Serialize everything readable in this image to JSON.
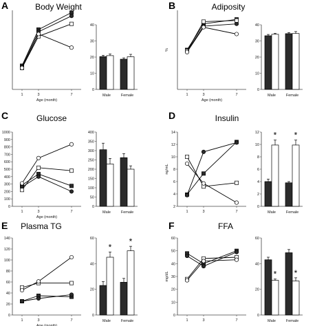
{
  "figure": {
    "colors": {
      "filled": "#2b2b2b",
      "open": "#ffffff",
      "stroke": "#000000",
      "axis": "#444444"
    },
    "legend": "none",
    "grid": false
  },
  "chart_data": [
    {
      "id": "A-line",
      "type": "line",
      "panel": "A",
      "title": "Body Weight",
      "xlabel": "Age (month)",
      "ylabel": "",
      "x": [
        "1",
        "3",
        "7"
      ],
      "ylim": [
        0,
        70
      ],
      "yticks": [],
      "series": [
        {
          "values": [
            21,
            53,
            68
          ],
          "marker": "filled-square"
        },
        {
          "values": [
            20,
            51,
            65
          ],
          "marker": "filled-circle"
        },
        {
          "values": [
            19,
            47,
            58
          ],
          "marker": "open-square"
        },
        {
          "values": [
            19,
            49,
            37
          ],
          "marker": "open-circle"
        }
      ]
    },
    {
      "id": "A-bar",
      "type": "bar",
      "panel": "A",
      "title": "",
      "categories": [
        "Male",
        "Female"
      ],
      "ylim": [
        0,
        40
      ],
      "yticks": [
        "0",
        "10",
        "20",
        "30",
        "40"
      ],
      "series": [
        {
          "values": [
            20.3,
            18.7
          ],
          "errors": [
            0.8,
            0.8
          ],
          "fill": "filled"
        },
        {
          "values": [
            20.9,
            20.2
          ],
          "errors": [
            1.0,
            1.5
          ],
          "fill": "open"
        }
      ],
      "significance": []
    },
    {
      "id": "B-line",
      "type": "line",
      "panel": "B",
      "title": "Adiposity",
      "xlabel": "Age (month)",
      "ylabel": "%",
      "x": [
        "1",
        "3",
        "7"
      ],
      "ylim": [
        0,
        70
      ],
      "yticks": [],
      "series": [
        {
          "values": [
            35,
            58,
            62
          ],
          "marker": "filled-square"
        },
        {
          "values": [
            34,
            56,
            58
          ],
          "marker": "filled-circle"
        },
        {
          "values": [
            34,
            60,
            61
          ],
          "marker": "open-square"
        },
        {
          "values": [
            33,
            55,
            49
          ],
          "marker": "open-circle"
        }
      ]
    },
    {
      "id": "B-bar",
      "type": "bar",
      "panel": "B",
      "title": "",
      "categories": [
        "Male",
        "Female"
      ],
      "ylim": [
        0,
        40
      ],
      "yticks": [
        "0",
        "10",
        "20",
        "30",
        "40"
      ],
      "series": [
        {
          "values": [
            33.2,
            34.5
          ],
          "errors": [
            0.8,
            0.7
          ],
          "fill": "filled"
        },
        {
          "values": [
            34.1,
            34.6
          ],
          "errors": [
            0.6,
            1.2
          ],
          "fill": "open"
        }
      ],
      "significance": []
    },
    {
      "id": "C-line",
      "type": "line",
      "panel": "C",
      "title": "Glucose",
      "xlabel": "Age (month)",
      "ylabel": "",
      "x": [
        "1",
        "3",
        "7"
      ],
      "ylim": [
        0,
        1000
      ],
      "yticks": [
        "0",
        "100",
        "200",
        "300",
        "400",
        "500",
        "600",
        "700",
        "800",
        "900",
        "1000"
      ],
      "series": [
        {
          "values": [
            285,
            435,
            275
          ],
          "marker": "filled-square"
        },
        {
          "values": [
            260,
            400,
            200
          ],
          "marker": "filled-circle"
        },
        {
          "values": [
            220,
            520,
            480
          ],
          "marker": "open-square"
        },
        {
          "values": [
            310,
            650,
            835
          ],
          "marker": "open-circle"
        }
      ]
    },
    {
      "id": "C-bar",
      "type": "bar",
      "panel": "C",
      "title": "",
      "categories": [
        "Male",
        "Female"
      ],
      "ylim": [
        0,
        400
      ],
      "yticks": [
        "0",
        "50",
        "100",
        "150",
        "200",
        "250",
        "300",
        "350",
        "400"
      ],
      "series": [
        {
          "values": [
            305,
            262
          ],
          "errors": [
            35,
            22
          ],
          "fill": "filled"
        },
        {
          "values": [
            228,
            200
          ],
          "errors": [
            30,
            18
          ],
          "fill": "open"
        }
      ],
      "significance": []
    },
    {
      "id": "D-line",
      "type": "line",
      "panel": "D",
      "title": "Insulin",
      "xlabel": "",
      "ylabel": "ng/mL",
      "x": [
        "1",
        "3",
        "7"
      ],
      "ylim": [
        2,
        14
      ],
      "yticks": [
        "2",
        "4",
        "6",
        "8",
        "10",
        "12",
        "14"
      ],
      "series": [
        {
          "values": [
            3.9,
            7.3,
            12.4
          ],
          "marker": "filled-square"
        },
        {
          "values": [
            3.8,
            10.8,
            12.3
          ],
          "marker": "filled-circle"
        },
        {
          "values": [
            10.0,
            5.2,
            5.8
          ],
          "marker": "open-square"
        },
        {
          "values": [
            8.9,
            5.7,
            2.6
          ],
          "marker": "open-circle"
        }
      ]
    },
    {
      "id": "D-bar",
      "type": "bar",
      "panel": "D",
      "title": "",
      "categories": [
        "Male",
        "Female"
      ],
      "ylim": [
        0,
        12
      ],
      "yticks": [
        "0",
        "2",
        "4",
        "6",
        "8",
        "10",
        "12"
      ],
      "series": [
        {
          "values": [
            4.0,
            3.8
          ],
          "errors": [
            0.4,
            0.2
          ],
          "fill": "filled"
        },
        {
          "values": [
            9.9,
            9.9
          ],
          "errors": [
            0.8,
            0.8
          ],
          "fill": "open"
        }
      ],
      "significance": [
        "*",
        "*"
      ]
    },
    {
      "id": "E-line",
      "type": "line",
      "panel": "E",
      "title": "Plasma TG",
      "xlabel": "Age (month)",
      "ylabel": "",
      "x": [
        "1",
        "3",
        "7"
      ],
      "ylim": [
        0,
        140
      ],
      "yticks": [
        "0",
        "20",
        "40",
        "60",
        "80",
        "100",
        "120",
        "140"
      ],
      "series": [
        {
          "values": [
            25,
            35,
            33
          ],
          "marker": "filled-square"
        },
        {
          "values": [
            25,
            30,
            37
          ],
          "marker": "filled-circle"
        },
        {
          "values": [
            50,
            58,
            58
          ],
          "marker": "open-square"
        },
        {
          "values": [
            45,
            61,
            105
          ],
          "marker": "open-circle"
        }
      ]
    },
    {
      "id": "E-bar",
      "type": "bar",
      "panel": "E",
      "title": "",
      "categories": [
        "Male",
        "Female"
      ],
      "ylim": [
        0,
        60
      ],
      "yticks": [
        "0",
        "20",
        "40",
        "60"
      ],
      "series": [
        {
          "values": [
            23,
            25.5
          ],
          "errors": [
            3,
            3
          ],
          "fill": "filled"
        },
        {
          "values": [
            45,
            50
          ],
          "errors": [
            4,
            3.5
          ],
          "fill": "open"
        }
      ],
      "significance": [
        "*",
        "*"
      ]
    },
    {
      "id": "F-line",
      "type": "line",
      "panel": "F",
      "title": "FFA",
      "xlabel": "",
      "ylabel": "mg/dL",
      "x": [
        "1",
        "3",
        "7"
      ],
      "ylim": [
        0,
        60
      ],
      "yticks": [
        "0",
        "10",
        "20",
        "30",
        "40",
        "50",
        "60"
      ],
      "series": [
        {
          "values": [
            48,
            40,
            50
          ],
          "marker": "filled-square"
        },
        {
          "values": [
            46,
            38,
            49
          ],
          "marker": "filled-circle"
        },
        {
          "values": [
            28,
            44,
            45
          ],
          "marker": "open-square"
        },
        {
          "values": [
            27,
            42,
            43
          ],
          "marker": "open-circle"
        }
      ]
    },
    {
      "id": "F-bar",
      "type": "bar",
      "panel": "F",
      "title": "",
      "categories": [
        "Male",
        "Female"
      ],
      "ylim": [
        0,
        60
      ],
      "yticks": [
        "0",
        "20",
        "40",
        "60"
      ],
      "series": [
        {
          "values": [
            43,
            48.5
          ],
          "errors": [
            2,
            2.5
          ],
          "fill": "filled"
        },
        {
          "values": [
            27,
            26.5
          ],
          "errors": [
            1,
            2.5
          ],
          "fill": "open"
        }
      ],
      "significance": [
        "*",
        "*"
      ]
    }
  ]
}
